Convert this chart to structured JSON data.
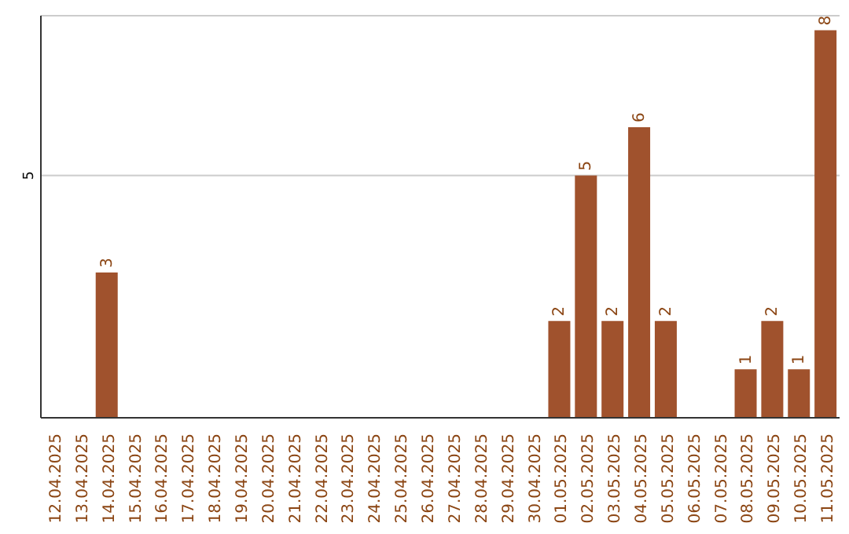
{
  "chart_data": {
    "type": "bar",
    "categories": [
      "12.04.2025",
      "13.04.2025",
      "14.04.2025",
      "15.04.2025",
      "16.04.2025",
      "17.04.2025",
      "18.04.2025",
      "19.04.2025",
      "20.04.2025",
      "21.04.2025",
      "22.04.2025",
      "23.04.2025",
      "24.04.2025",
      "25.04.2025",
      "26.04.2025",
      "27.04.2025",
      "28.04.2025",
      "29.04.2025",
      "30.04.2025",
      "01.05.2025",
      "02.05.2025",
      "03.05.2025",
      "04.05.2025",
      "05.05.2025",
      "06.05.2025",
      "07.05.2025",
      "08.05.2025",
      "09.05.2025",
      "10.05.2025",
      "11.05.2025"
    ],
    "values": [
      0,
      0,
      3,
      0,
      0,
      0,
      0,
      0,
      0,
      0,
      0,
      0,
      0,
      0,
      0,
      0,
      0,
      0,
      0,
      2,
      5,
      2,
      6,
      2,
      0,
      0,
      1,
      2,
      1,
      8
    ],
    "value_labels": [
      null,
      null,
      "3",
      null,
      null,
      null,
      null,
      null,
      null,
      null,
      null,
      null,
      null,
      null,
      null,
      null,
      null,
      null,
      null,
      "2",
      "5",
      "2",
      "6",
      "2",
      null,
      null,
      "1",
      "2",
      "1",
      "8"
    ],
    "color": "#a0522d",
    "ylim": [
      0,
      8.3
    ],
    "yticks": [
      5
    ],
    "grid": "y"
  }
}
